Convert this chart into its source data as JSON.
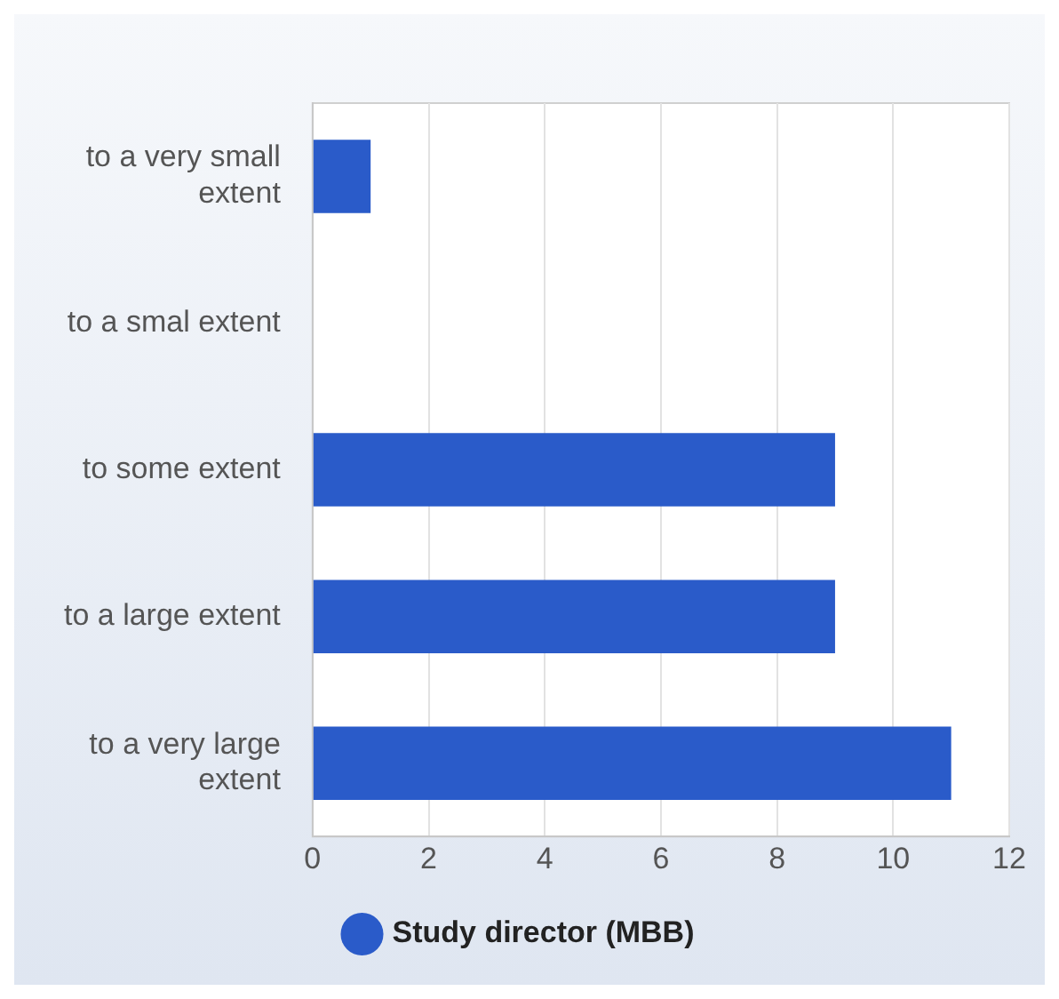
{
  "chart_data": {
    "type": "bar",
    "orientation": "horizontal",
    "categories": [
      "to a very small extent",
      "to a smal extent",
      "to some extent",
      "to a large extent",
      "to a very large extent"
    ],
    "series": [
      {
        "name": "Study director (MBB)",
        "color": "#2a5bc9",
        "values": [
          1,
          0,
          9,
          9,
          11
        ]
      }
    ],
    "xlim": [
      0,
      12
    ],
    "xticks": [
      0,
      2,
      4,
      6,
      8,
      10,
      12
    ],
    "grid": "x",
    "legend": "bottom"
  }
}
